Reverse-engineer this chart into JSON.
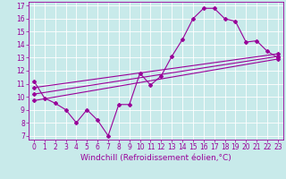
{
  "title": "",
  "xlabel": "Windchill (Refroidissement éolien,°C)",
  "ylabel": "",
  "bg_color": "#c8eaea",
  "grid_color": "#ffffff",
  "line_color": "#990099",
  "x_min": 0,
  "x_max": 23,
  "y_min": 7,
  "y_max": 17,
  "x_ticks": [
    0,
    1,
    2,
    3,
    4,
    5,
    6,
    7,
    8,
    9,
    10,
    11,
    12,
    13,
    14,
    15,
    16,
    17,
    18,
    19,
    20,
    21,
    22,
    23
  ],
  "y_ticks": [
    7,
    8,
    9,
    10,
    11,
    12,
    13,
    14,
    15,
    16,
    17
  ],
  "data_line": {
    "x": [
      0,
      1,
      2,
      3,
      4,
      5,
      6,
      7,
      8,
      9,
      10,
      11,
      12,
      13,
      14,
      15,
      16,
      17,
      18,
      19,
      20,
      21,
      22,
      23
    ],
    "y": [
      11.2,
      9.9,
      9.5,
      9.0,
      8.0,
      9.0,
      8.2,
      7.0,
      9.4,
      9.4,
      11.8,
      10.9,
      11.6,
      13.1,
      14.4,
      16.0,
      16.8,
      16.8,
      16.0,
      15.8,
      14.2,
      14.3,
      13.5,
      13.0
    ]
  },
  "trend_line1": {
    "x": [
      0,
      23
    ],
    "y": [
      10.2,
      13.1
    ]
  },
  "trend_line2": {
    "x": [
      0,
      23
    ],
    "y": [
      10.7,
      13.3
    ]
  },
  "trend_line3": {
    "x": [
      0,
      23
    ],
    "y": [
      9.7,
      12.9
    ]
  },
  "tick_fontsize": 5.5,
  "xlabel_fontsize": 6.5,
  "linewidth": 0.8,
  "marker": "D",
  "markersize": 2.0
}
